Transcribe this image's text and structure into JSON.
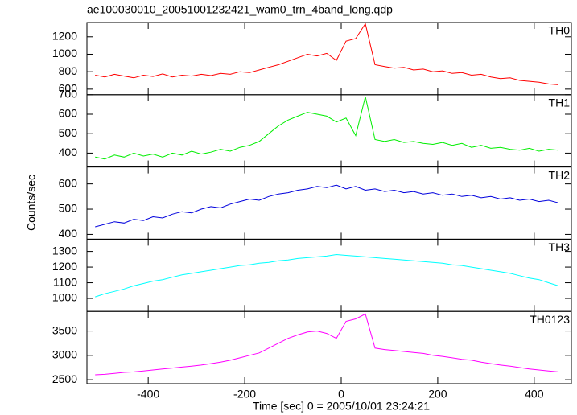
{
  "chart_data": {
    "type": "line",
    "title": "ae100030010_20051001232421_wam0_trn_4band_long.qdp",
    "xlabel": "Time [sec] 0 = 2005/10/01 23:24:21",
    "ylabel": "Counts/sec",
    "xlim": [
      -527,
      477
    ],
    "xticks": [
      -400,
      -200,
      0,
      200,
      400
    ],
    "x": [
      -510,
      -490,
      -470,
      -450,
      -430,
      -410,
      -390,
      -370,
      -350,
      -330,
      -310,
      -290,
      -270,
      -250,
      -230,
      -210,
      -190,
      -170,
      -150,
      -130,
      -110,
      -90,
      -70,
      -50,
      -30,
      -10,
      10,
      30,
      50,
      70,
      90,
      110,
      130,
      150,
      170,
      190,
      210,
      230,
      250,
      270,
      290,
      310,
      330,
      350,
      370,
      390,
      410,
      430,
      450
    ],
    "panels": [
      {
        "name": "TH0",
        "color": "#ff0000",
        "ylim": [
          536,
          1364
        ],
        "yticks": [
          600,
          800,
          1000,
          1200
        ],
        "values": [
          760,
          740,
          770,
          750,
          730,
          760,
          745,
          775,
          740,
          760,
          750,
          770,
          755,
          780,
          770,
          800,
          790,
          820,
          850,
          880,
          920,
          960,
          1000,
          980,
          1010,
          930,
          1150,
          1180,
          1350,
          880,
          860,
          840,
          850,
          820,
          830,
          800,
          810,
          780,
          790,
          760,
          770,
          740,
          720,
          730,
          700,
          690,
          680,
          660,
          650
        ]
      },
      {
        "name": "TH1",
        "color": "#00ee00",
        "ylim": [
          329,
          700
        ],
        "yticks": [
          400,
          500,
          600,
          700
        ],
        "values": [
          380,
          370,
          390,
          380,
          400,
          385,
          395,
          380,
          400,
          390,
          410,
          395,
          405,
          420,
          410,
          430,
          440,
          460,
          500,
          540,
          570,
          590,
          610,
          600,
          590,
          560,
          580,
          490,
          690,
          470,
          460,
          470,
          455,
          460,
          450,
          445,
          455,
          440,
          450,
          430,
          440,
          425,
          430,
          420,
          415,
          425,
          410,
          420,
          415
        ]
      },
      {
        "name": "TH2",
        "color": "#0000dd",
        "ylim": [
          381,
          667
        ],
        "yticks": [
          400,
          500,
          600
        ],
        "values": [
          430,
          440,
          450,
          445,
          460,
          455,
          470,
          465,
          480,
          490,
          485,
          500,
          510,
          505,
          520,
          530,
          540,
          535,
          550,
          560,
          565,
          575,
          580,
          590,
          585,
          595,
          580,
          590,
          575,
          580,
          570,
          575,
          565,
          570,
          560,
          565,
          555,
          560,
          550,
          555,
          545,
          550,
          540,
          545,
          535,
          540,
          530,
          535,
          525
        ]
      },
      {
        "name": "TH3",
        "color": "#00ffff",
        "ylim": [
          917,
          1378
        ],
        "yticks": [
          1000,
          1100,
          1200,
          1300
        ],
        "values": [
          1010,
          1030,
          1045,
          1060,
          1080,
          1095,
          1110,
          1120,
          1135,
          1150,
          1160,
          1170,
          1180,
          1190,
          1200,
          1210,
          1215,
          1225,
          1230,
          1240,
          1245,
          1255,
          1260,
          1265,
          1270,
          1280,
          1275,
          1270,
          1265,
          1260,
          1255,
          1250,
          1245,
          1240,
          1235,
          1230,
          1225,
          1215,
          1210,
          1200,
          1190,
          1180,
          1170,
          1160,
          1145,
          1130,
          1120,
          1100,
          1080
        ]
      },
      {
        "name": "TH0123",
        "color": "#ff00ff",
        "ylim": [
          2419,
          3903
        ],
        "yticks": [
          2500,
          3000,
          3500
        ],
        "values": [
          2600,
          2610,
          2630,
          2650,
          2660,
          2680,
          2700,
          2720,
          2740,
          2760,
          2780,
          2800,
          2830,
          2860,
          2900,
          2950,
          3000,
          3050,
          3150,
          3250,
          3350,
          3420,
          3480,
          3500,
          3450,
          3350,
          3700,
          3750,
          3850,
          3150,
          3120,
          3100,
          3080,
          3060,
          3040,
          3000,
          2980,
          2950,
          2920,
          2900,
          2860,
          2830,
          2800,
          2780,
          2750,
          2720,
          2700,
          2680,
          2660
        ]
      }
    ]
  }
}
